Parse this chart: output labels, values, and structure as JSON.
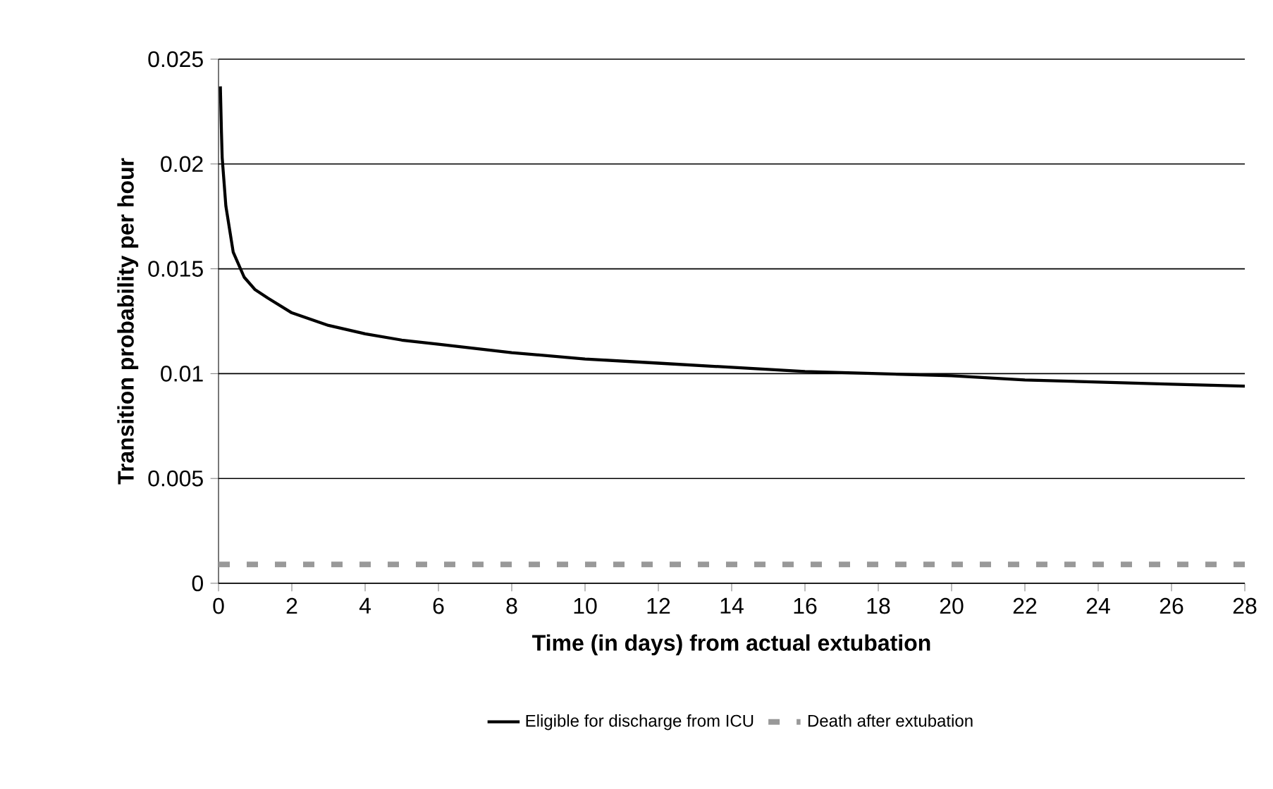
{
  "chart_data": {
    "type": "line",
    "xlabel": "Time (in days) from actual extubation",
    "ylabel": "Transition probability per hour",
    "xlim": [
      0,
      28
    ],
    "xticks": [
      0,
      2,
      4,
      6,
      8,
      10,
      12,
      14,
      16,
      18,
      20,
      22,
      24,
      26,
      28
    ],
    "ylim": [
      0,
      0.025
    ],
    "yticks": [
      0,
      0.005,
      0.01,
      0.015,
      0.02,
      0.025
    ],
    "grid": "y",
    "legend": "bottom",
    "marker": "none",
    "series": [
      {
        "name": "Eligible for discharge from ICU",
        "color": "#000000",
        "line_style": "solid",
        "x": [
          0.05,
          0.08,
          0.1,
          0.2,
          0.4,
          0.7,
          1,
          1.35,
          2,
          3,
          4,
          5,
          6,
          8,
          10,
          12,
          14,
          16,
          18,
          20,
          22,
          24,
          26,
          28
        ],
        "values": [
          0.0237,
          0.0215,
          0.0203,
          0.018,
          0.0158,
          0.0146,
          0.014,
          0.0136,
          0.0129,
          0.0123,
          0.0119,
          0.0116,
          0.0114,
          0.011,
          0.0107,
          0.0105,
          0.0103,
          0.0101,
          0.01,
          0.0099,
          0.0097,
          0.0096,
          0.0095,
          0.0094
        ]
      },
      {
        "name": "Death after extubation",
        "color": "#999999",
        "line_style": "dashed",
        "x": [
          0,
          28
        ],
        "values": [
          0.0009,
          0.0009
        ]
      }
    ]
  }
}
